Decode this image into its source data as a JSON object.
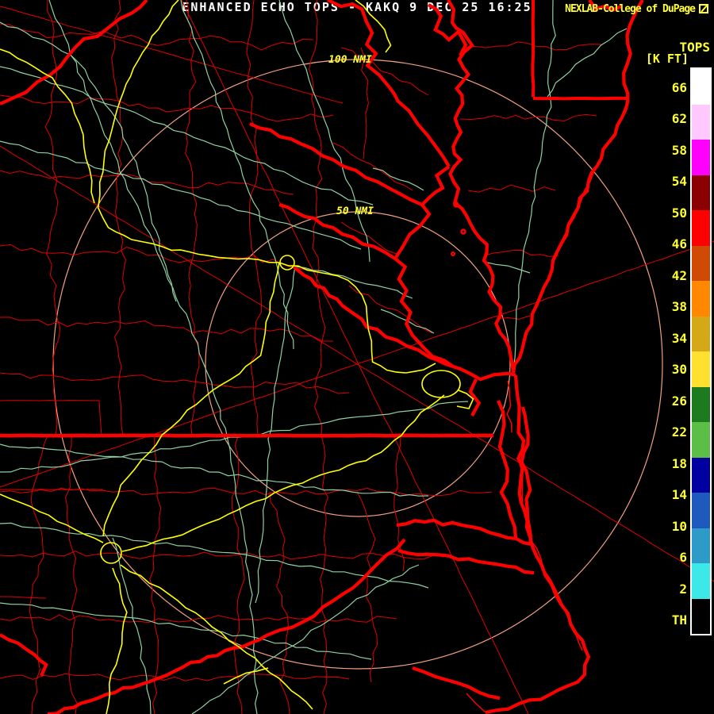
{
  "brand": {
    "text": "NEXLAB-College of DuPage",
    "icon": "cod-box-icon"
  },
  "legend": {
    "title": "TOPS",
    "units": "[K FT]",
    "tick_labels": [
      "66",
      "62",
      "58",
      "54",
      "50",
      "46",
      "42",
      "38",
      "34",
      "30",
      "26",
      "22",
      "18",
      "14",
      "10",
      "6",
      "2",
      "TH"
    ],
    "segment_colors": [
      "#ffffff",
      "#ffc8ff",
      "#ff00ff",
      "#8b0000",
      "#ff0000",
      "#d04a05",
      "#ff8800",
      "#d4a817",
      "#ffe02e",
      "#1d7a1d",
      "#5cbe46",
      "#0000a0",
      "#1e5abe",
      "#2e9ac8",
      "#3ce8e8",
      "#000000"
    ]
  },
  "rings": {
    "outer_label": "100 NMI",
    "inner_label": "50 NMI"
  },
  "footer": {
    "product_line": "ENHANCED ECHO TOPS - KAKQ 9 DEC 25 16:25"
  },
  "map_colors": {
    "background": "#000000",
    "coastline": "#ff0000",
    "county_line": "#e10000",
    "road": "#8fd0a0",
    "highway": "#ffff00",
    "range_ring": "#f0a080",
    "label_yellow": "#ffff33",
    "text_white": "#ffffff"
  }
}
